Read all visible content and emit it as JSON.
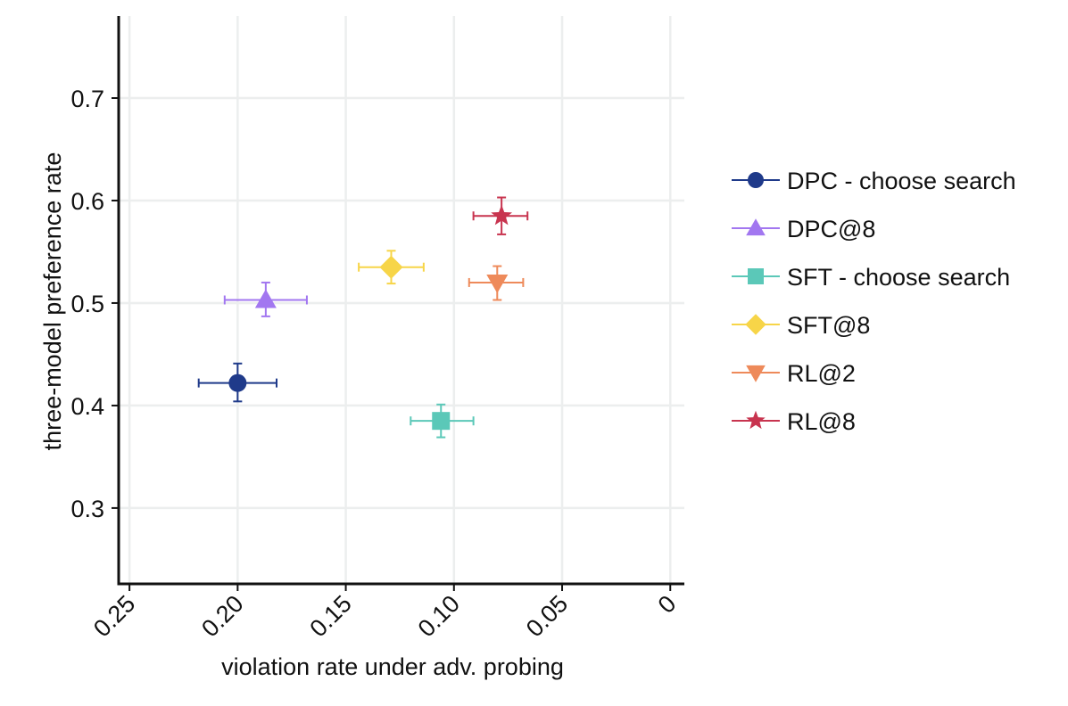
{
  "chart_data": {
    "type": "scatter",
    "title": "",
    "xlabel": "violation rate under adv. probing",
    "ylabel": "three-model preference rate",
    "xlim": [
      0.255,
      -0.0065
    ],
    "ylim": [
      0.226,
      0.78
    ],
    "x_reversed": true,
    "grid": true,
    "legend_position": "right",
    "xticks": [
      0.25,
      0.2,
      0.15,
      0.1,
      0.05,
      0
    ],
    "xtick_labels": [
      "0.25",
      "0.20",
      "0.15",
      "0.10",
      "0.05",
      "0"
    ],
    "yticks": [
      0.3,
      0.4,
      0.5,
      0.6,
      0.7
    ],
    "ytick_labels": [
      "0.3",
      "0.4",
      "0.5",
      "0.6",
      "0.7"
    ],
    "series": [
      {
        "name": "DPC - choose search",
        "marker": "circle",
        "color": "#1f3a8a",
        "x": 0.2,
        "y": 0.422,
        "xerr": [
          0.218,
          0.182
        ],
        "yerr": [
          0.404,
          0.441
        ]
      },
      {
        "name": "DPC@8",
        "marker": "triangle-up",
        "color": "#a277f0",
        "x": 0.187,
        "y": 0.503,
        "xerr": [
          0.206,
          0.168
        ],
        "yerr": [
          0.487,
          0.52
        ]
      },
      {
        "name": "SFT - choose search",
        "marker": "square",
        "color": "#5bc8b8",
        "x": 0.106,
        "y": 0.385,
        "xerr": [
          0.12,
          0.091
        ],
        "yerr": [
          0.369,
          0.401
        ]
      },
      {
        "name": "SFT@8",
        "marker": "diamond",
        "color": "#f7d548",
        "x": 0.129,
        "y": 0.535,
        "xerr": [
          0.144,
          0.114
        ],
        "yerr": [
          0.519,
          0.551
        ]
      },
      {
        "name": "RL@2",
        "marker": "triangle-down",
        "color": "#ee8a5a",
        "x": 0.08,
        "y": 0.52,
        "xerr": [
          0.093,
          0.068
        ],
        "yerr": [
          0.503,
          0.536
        ]
      },
      {
        "name": "RL@8",
        "marker": "star",
        "color": "#c8344f",
        "x": 0.078,
        "y": 0.585,
        "xerr": [
          0.091,
          0.066
        ],
        "yerr": [
          0.567,
          0.603
        ]
      }
    ]
  }
}
